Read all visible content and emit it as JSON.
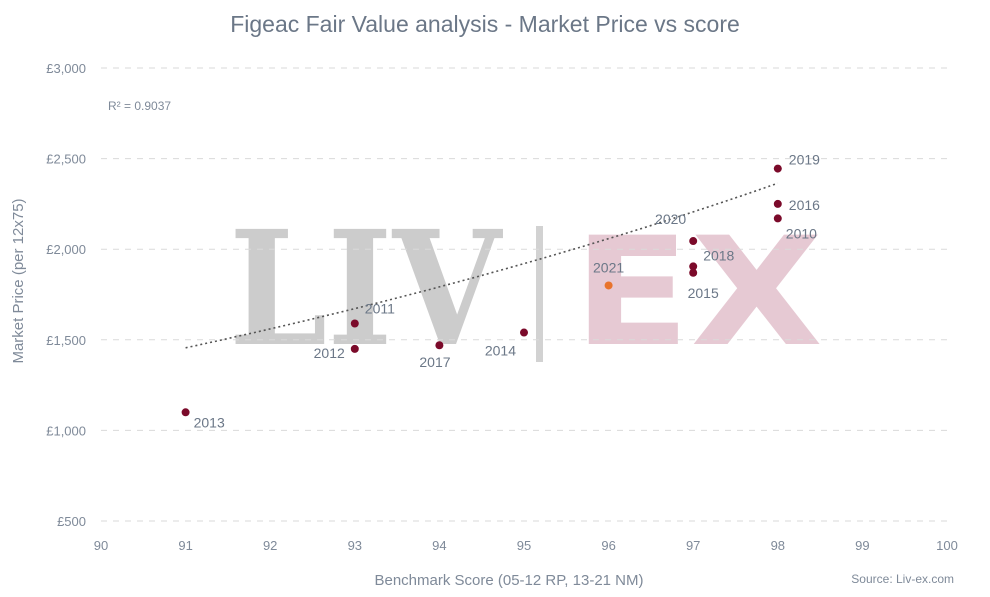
{
  "chart_data": {
    "type": "scatter",
    "title": "Figeac Fair Value analysis - Market Price vs score",
    "xlabel": "Benchmark Score (05-12 RP, 13-21 NM)",
    "ylabel": "Market Price (per 12x75)",
    "xlim": [
      90,
      100
    ],
    "ylim": [
      500,
      3000
    ],
    "x_ticks": [
      "90",
      "91",
      "92",
      "93",
      "94",
      "95",
      "96",
      "97",
      "98",
      "99",
      "100"
    ],
    "y_ticks": [
      "£500",
      "£1,000",
      "£1,500",
      "£2,000",
      "£2,500",
      "£3,000"
    ],
    "grid": true,
    "annotation": "R² = 0.9037",
    "source": "Source: Liv-ex.com",
    "watermark": {
      "left": "LIV",
      "right": "EX"
    },
    "colors": {
      "point": "#7b0a2a",
      "highlight": "#e8732c",
      "trend": "#555555"
    },
    "trendline": {
      "type": "exponential",
      "a": 2.6636,
      "b": 0.06927
    },
    "points": [
      {
        "label": "2013",
        "x": 91,
        "y": 1100
      },
      {
        "label": "2011",
        "x": 93,
        "y": 1590
      },
      {
        "label": "2012",
        "x": 93,
        "y": 1450
      },
      {
        "label": "2017",
        "x": 94,
        "y": 1470
      },
      {
        "label": "2014",
        "x": 95,
        "y": 1540
      },
      {
        "label": "2021",
        "x": 96,
        "y": 1800,
        "highlight": true
      },
      {
        "label": "2020",
        "x": 97,
        "y": 2045
      },
      {
        "label": "2018",
        "x": 97,
        "y": 1905
      },
      {
        "label": "2015",
        "x": 97,
        "y": 1870
      },
      {
        "label": "2019",
        "x": 98,
        "y": 2445
      },
      {
        "label": "2016",
        "x": 98,
        "y": 2250
      },
      {
        "label": "2010",
        "x": 98,
        "y": 2170
      }
    ]
  }
}
